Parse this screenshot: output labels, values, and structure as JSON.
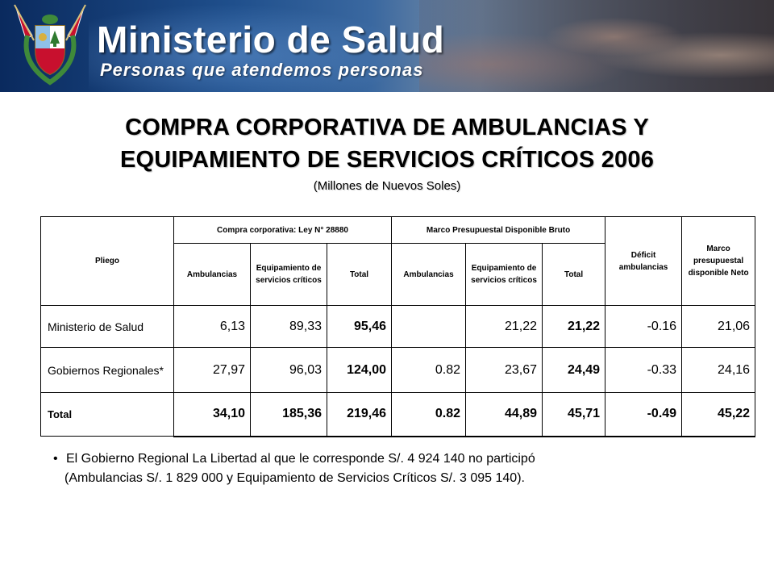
{
  "banner": {
    "ministry_title": "Ministerio de Salud",
    "slogan": "Personas que atendemos personas"
  },
  "title": {
    "line1": "COMPRA CORPORATIVA DE AMBULANCIAS Y",
    "line2": "EQUIPAMIENTO DE SERVICIOS CRÍTICOS 2006",
    "subtitle": "(Millones de Nuevos Soles)"
  },
  "table": {
    "headers": {
      "pliego": "Pliego",
      "group1": "Compra corporativa: Ley N° 28880",
      "group2": "Marco Presupuestal Disponible Bruto",
      "deficit": "Déficit ambulancias",
      "marco_neto": "Marco presupuestal disponible Neto",
      "ambulancias": "Ambulancias",
      "equipamiento": "Equipamiento de servicios críticos",
      "total": "Total"
    },
    "rows": [
      {
        "pliego": "Ministerio de Salud",
        "cc_amb": "6,13",
        "cc_equip": "89,33",
        "cc_total": "95,46",
        "mp_amb": "",
        "mp_equip": "21,22",
        "mp_total": "21,22",
        "deficit": "-0.16",
        "neto": "21,06"
      },
      {
        "pliego": "Gobiernos Regionales*",
        "cc_amb": "27,97",
        "cc_equip": "96,03",
        "cc_total": "124,00",
        "mp_amb": "0.82",
        "mp_equip": "23,67",
        "mp_total": "24,49",
        "deficit": "-0.33",
        "neto": "24,16"
      },
      {
        "pliego": "Total",
        "cc_amb": "34,10",
        "cc_equip": "185,36",
        "cc_total": "219,46",
        "mp_amb": "0.82",
        "mp_equip": "44,89",
        "mp_total": "45,71",
        "deficit": "-0.49",
        "neto": "45,22"
      }
    ]
  },
  "note": {
    "bullet": "•",
    "line1": "El Gobierno Regional La Libertad al que le corresponde S/. 4 924 140 no participó",
    "line2": "(Ambulancias S/. 1 829 000 y Equipamiento de Servicios Críticos S/. 3 095 140)."
  }
}
